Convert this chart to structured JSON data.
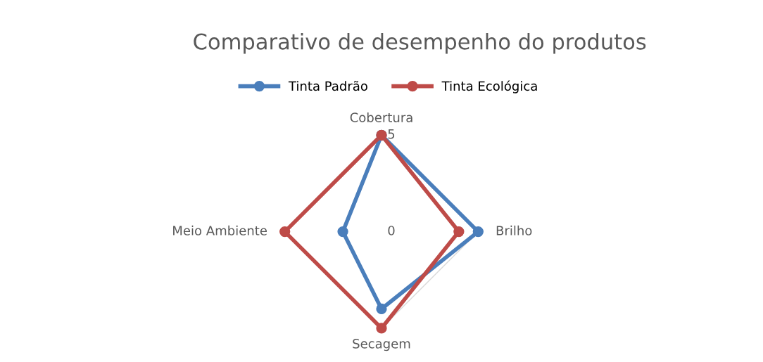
{
  "chart_data": {
    "type": "radar",
    "title": "Comparativo de desempenho do produtos",
    "categories": [
      "Cobertura",
      "Brilho",
      "Secagem",
      "Meio Ambiente"
    ],
    "series": [
      {
        "name": "Tinta Padrão",
        "color": "#4a7ebb",
        "values": [
          5,
          5,
          4,
          2
        ]
      },
      {
        "name": "Tinta Ecológica",
        "color": "#be4b48",
        "values": [
          5,
          4,
          5,
          5
        ]
      }
    ],
    "ylim": [
      0,
      5
    ],
    "yticks": [
      0,
      5
    ],
    "grid": true,
    "legend": "top",
    "marker": "circle",
    "line_style": "solid"
  }
}
